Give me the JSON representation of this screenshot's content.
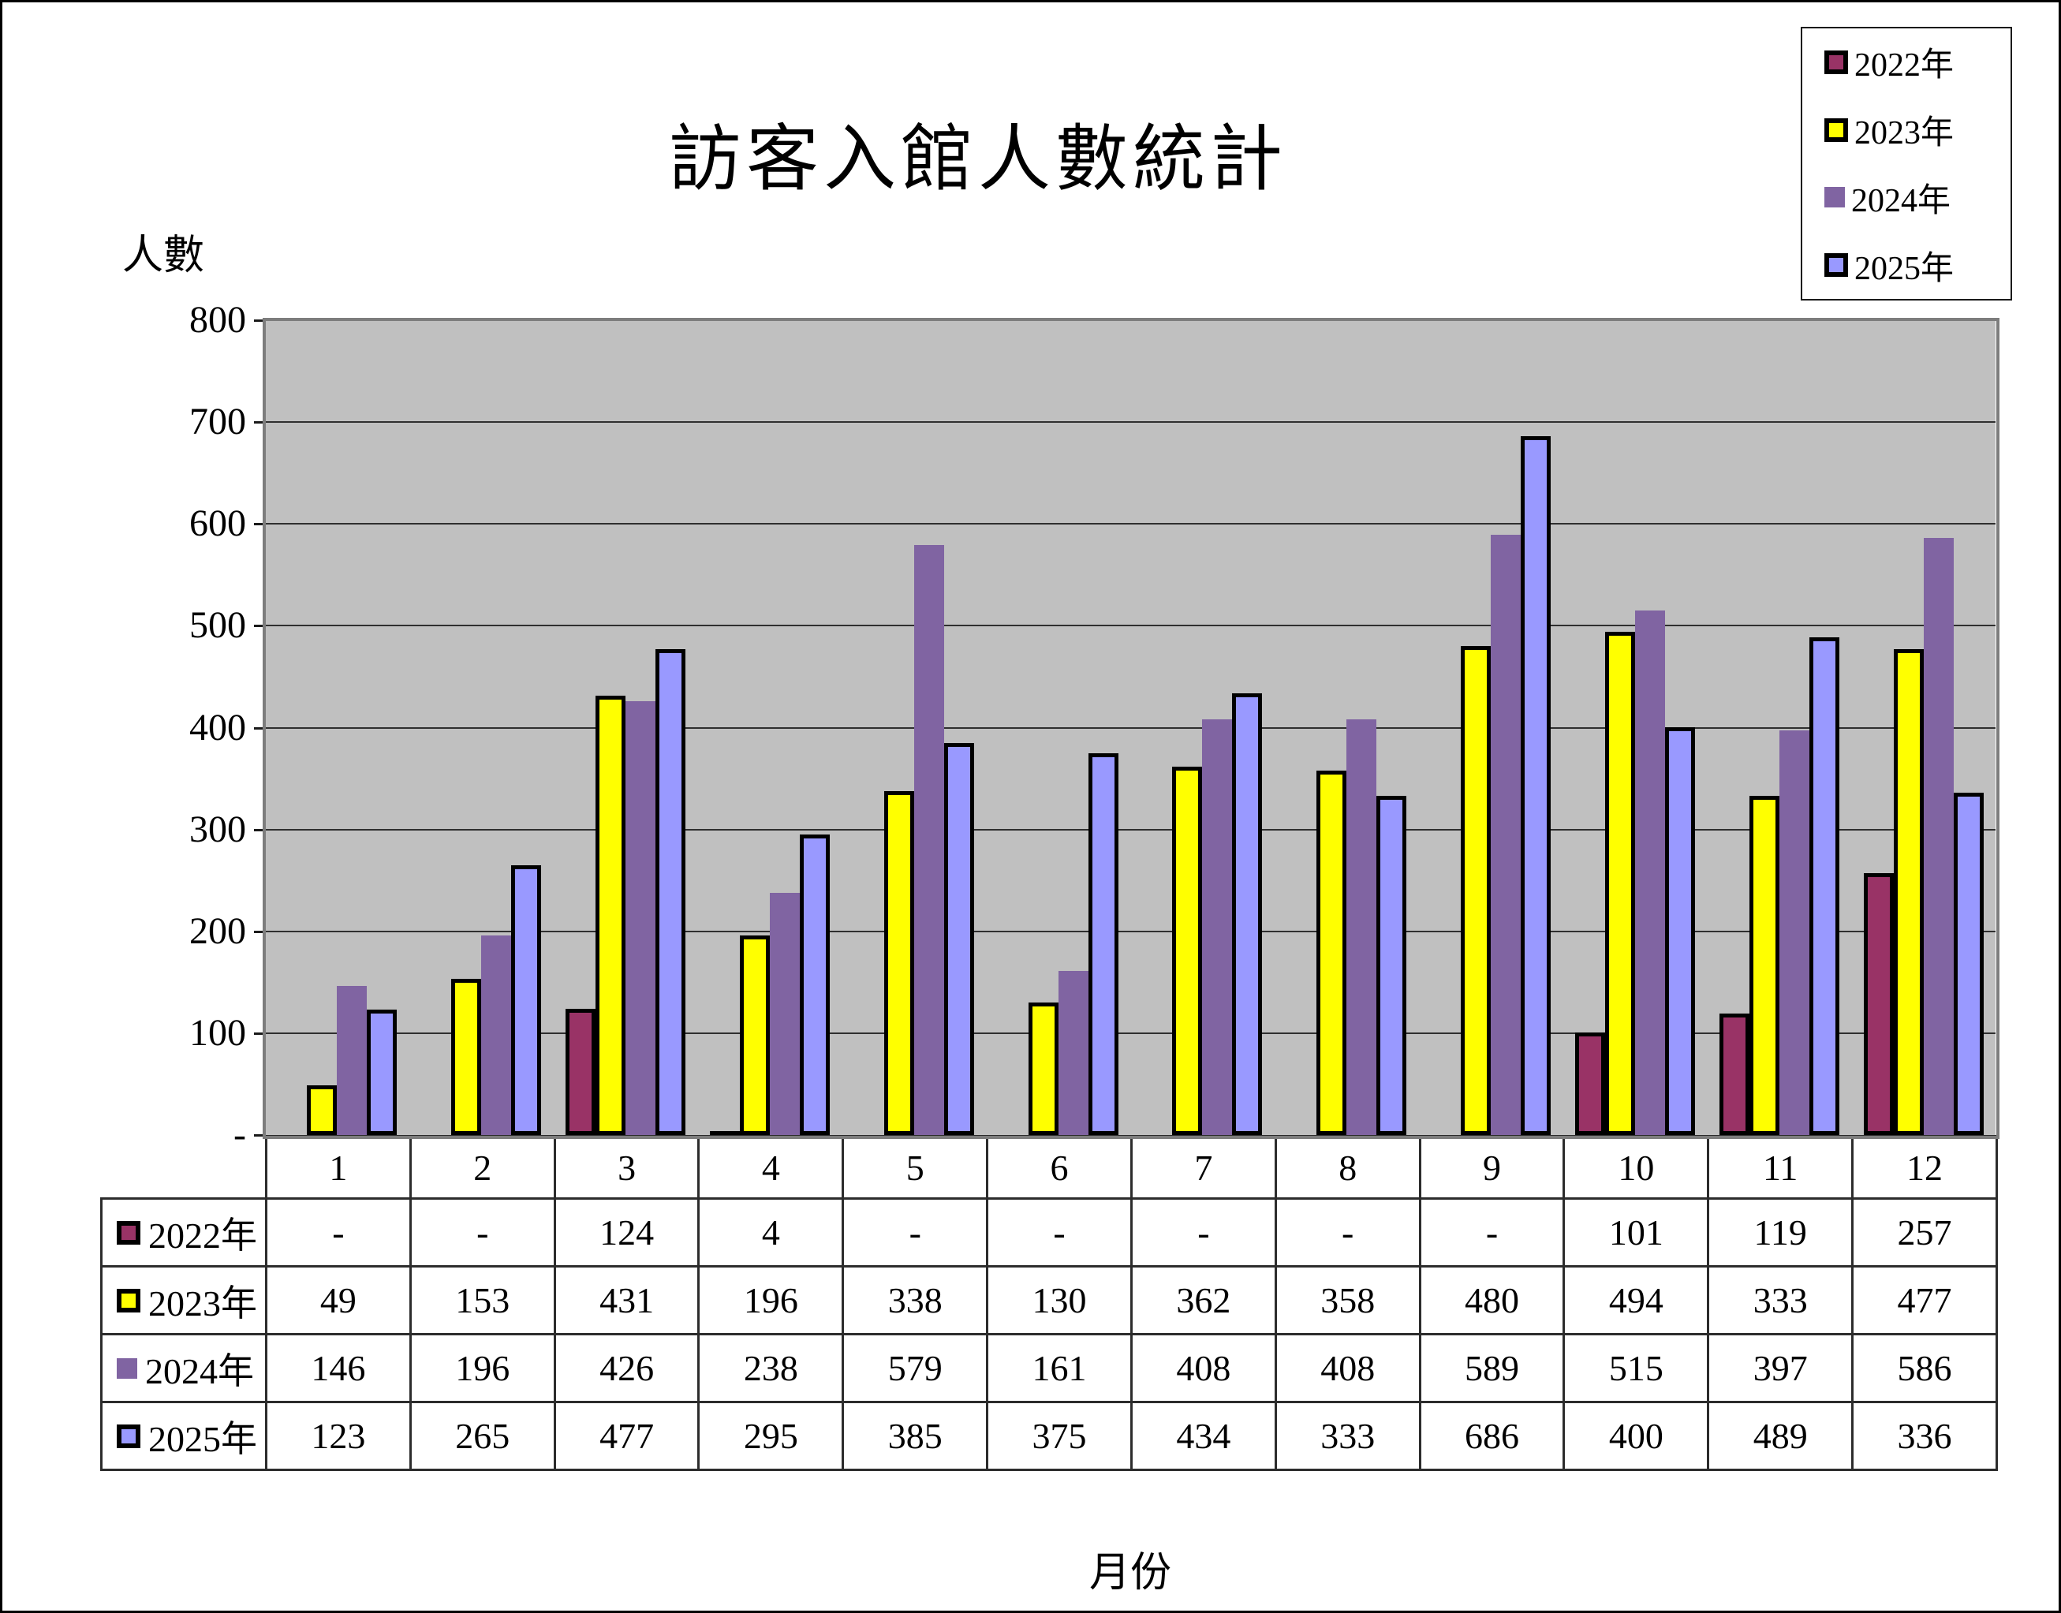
{
  "title": "訪客入館人數統計",
  "y_axis": {
    "label": "人數",
    "tick_labels": [
      "800",
      "700",
      "600",
      "500",
      "400",
      "300",
      "200",
      "100",
      "-"
    ],
    "max": 800,
    "step": 100
  },
  "x_axis": {
    "label": "月份"
  },
  "null_display": "-",
  "colors": {
    "plot_bg": "#C0C0C0",
    "gridline": "#2F2F2F",
    "bar_border": "#000000"
  },
  "chart_data": {
    "type": "bar",
    "title": "訪客入館人數統計",
    "xlabel": "月份",
    "ylabel": "人數",
    "ylim": [
      0,
      800
    ],
    "ytick_step": 100,
    "grid": true,
    "legend_position": "top-right",
    "data_table_attached": true,
    "categories": [
      "1",
      "2",
      "3",
      "4",
      "5",
      "6",
      "7",
      "8",
      "9",
      "10",
      "11",
      "12"
    ],
    "series": [
      {
        "name": "2022年",
        "color": "#993366",
        "border": true,
        "values": [
          null,
          null,
          124,
          4,
          null,
          null,
          null,
          null,
          null,
          101,
          119,
          257
        ]
      },
      {
        "name": "2023年",
        "color": "#FFFF00",
        "border": true,
        "values": [
          49,
          153,
          431,
          196,
          338,
          130,
          362,
          358,
          480,
          494,
          333,
          477
        ]
      },
      {
        "name": "2024年",
        "color": "#8064A2",
        "border": false,
        "values": [
          146,
          196,
          426,
          238,
          579,
          161,
          408,
          408,
          589,
          515,
          397,
          586
        ]
      },
      {
        "name": "2025年",
        "color": "#9999FF",
        "border": true,
        "values": [
          123,
          265,
          477,
          295,
          385,
          375,
          434,
          333,
          686,
          400,
          489,
          336
        ]
      }
    ]
  }
}
